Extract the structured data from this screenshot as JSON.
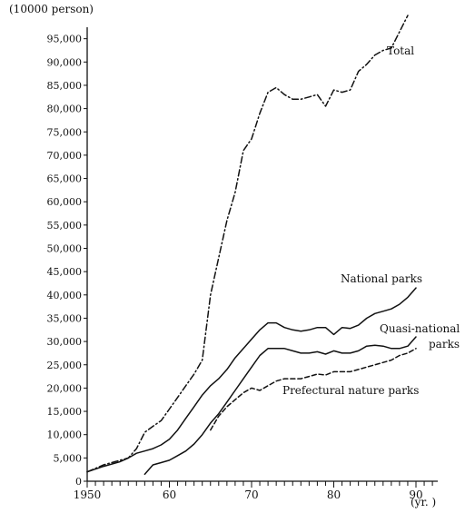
{
  "chart_data": {
    "type": "line",
    "title": "",
    "ylabel": "(10000 person)",
    "xlabel": "(yr. )",
    "xlim": [
      1950,
      1992
    ],
    "ylim": [
      0,
      100000
    ],
    "x_ticks": [
      1950,
      1960,
      1970,
      1980,
      1990
    ],
    "x_tick_labels": [
      "1950",
      "60",
      "70",
      "80",
      "90"
    ],
    "y_ticks": [
      0,
      5000,
      10000,
      15000,
      20000,
      25000,
      30000,
      35000,
      40000,
      45000,
      50000,
      55000,
      60000,
      65000,
      70000,
      75000,
      80000,
      85000,
      90000,
      95000
    ],
    "y_tick_labels": [
      "0",
      "5,000",
      "10,000",
      "15,000",
      "20,000",
      "25,000",
      "30,000",
      "35,000",
      "40,000",
      "45,000",
      "50,000",
      "55,000",
      "60,000",
      "65,000",
      "70,000",
      "75,000",
      "80,000",
      "85,000",
      "90,000",
      "95,000"
    ],
    "grid": false,
    "legend": "none",
    "series": [
      {
        "name": "Total",
        "style": "dash-dot",
        "x": [
          1950,
          1952,
          1954,
          1955,
          1956,
          1957,
          1958,
          1959,
          1960,
          1961,
          1962,
          1963,
          1964,
          1965,
          1966,
          1967,
          1968,
          1969,
          1970,
          1971,
          1972,
          1973,
          1974,
          1975,
          1976,
          1977,
          1978,
          1979,
          1980,
          1981,
          1982,
          1983,
          1984,
          1985,
          1986,
          1987,
          1988,
          1989
        ],
        "values": [
          2000,
          3500,
          4500,
          5000,
          7000,
          10500,
          11800,
          13000,
          15500,
          18000,
          20500,
          23000,
          26000,
          40000,
          48000,
          56000,
          62000,
          71000,
          73500,
          79000,
          83500,
          84500,
          83000,
          82000,
          82000,
          82500,
          83000,
          80500,
          84000,
          83500,
          84000,
          88000,
          89500,
          91500,
          92500,
          93000,
          96500,
          100000
        ]
      },
      {
        "name": "National parks",
        "style": "solid",
        "x": [
          1950,
          1952,
          1954,
          1955,
          1956,
          1957,
          1958,
          1959,
          1960,
          1961,
          1962,
          1963,
          1964,
          1965,
          1966,
          1967,
          1968,
          1969,
          1970,
          1971,
          1972,
          1973,
          1974,
          1975,
          1976,
          1977,
          1978,
          1979,
          1980,
          1981,
          1982,
          1983,
          1984,
          1985,
          1986,
          1987,
          1988,
          1989,
          1990
        ],
        "values": [
          2000,
          3200,
          4200,
          5000,
          6000,
          6500,
          7000,
          7800,
          9000,
          11000,
          13500,
          16000,
          18500,
          20500,
          22000,
          24000,
          26500,
          28500,
          30500,
          32500,
          34000,
          34000,
          33000,
          32500,
          32200,
          32500,
          33000,
          33000,
          31500,
          33000,
          32800,
          33500,
          35000,
          36000,
          36500,
          37000,
          38000,
          39500,
          41500
        ]
      },
      {
        "name": "Quasi-national parks",
        "name2": "parks",
        "style": "solid",
        "x": [
          1957,
          1958,
          1959,
          1960,
          1961,
          1962,
          1963,
          1964,
          1965,
          1966,
          1967,
          1968,
          1969,
          1970,
          1971,
          1972,
          1973,
          1974,
          1975,
          1976,
          1977,
          1978,
          1979,
          1980,
          1981,
          1982,
          1983,
          1984,
          1985,
          1986,
          1987,
          1988,
          1989,
          1990
        ],
        "values": [
          1500,
          3500,
          4000,
          4500,
          5500,
          6500,
          8000,
          10000,
          12500,
          14500,
          17000,
          19500,
          22000,
          24500,
          27000,
          28500,
          28500,
          28500,
          28000,
          27500,
          27500,
          27800,
          27300,
          28000,
          27500,
          27500,
          28000,
          29000,
          29200,
          29000,
          28500,
          28500,
          29000,
          31000
        ]
      },
      {
        "name": "Prefectural nature parks",
        "style": "dashed",
        "x": [
          1965,
          1966,
          1967,
          1968,
          1969,
          1970,
          1971,
          1972,
          1973,
          1974,
          1975,
          1976,
          1977,
          1978,
          1979,
          1980,
          1981,
          1982,
          1983,
          1984,
          1985,
          1986,
          1987,
          1988,
          1989,
          1990
        ],
        "values": [
          11000,
          14000,
          16000,
          17500,
          19000,
          20000,
          19500,
          20500,
          21500,
          22000,
          22000,
          22000,
          22500,
          23000,
          22800,
          23500,
          23500,
          23500,
          24000,
          24500,
          25000,
          25500,
          26000,
          27000,
          27500,
          28500
        ]
      }
    ]
  }
}
